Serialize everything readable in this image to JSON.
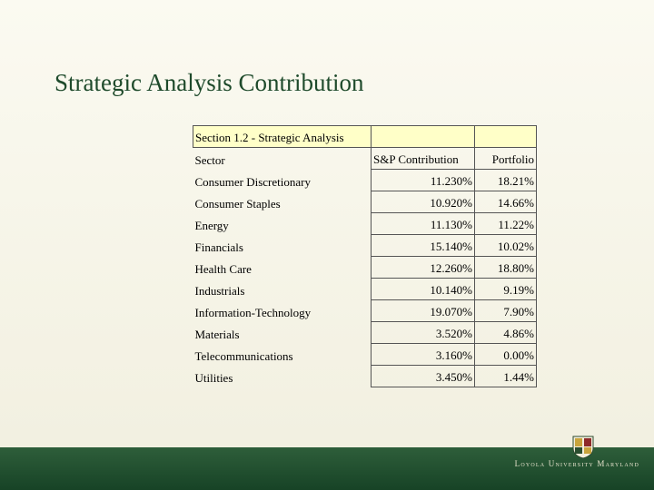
{
  "title": "Strategic Analysis Contribution",
  "table": {
    "caption": "Section 1.2 - Strategic Analysis",
    "columns": [
      "Sector",
      "S&P Contribution",
      "Portfolio"
    ],
    "rows": [
      [
        "Consumer Discretionary",
        "11.230%",
        "18.21%"
      ],
      [
        "Consumer Staples",
        "10.920%",
        "14.66%"
      ],
      [
        "Energy",
        "11.130%",
        "11.22%"
      ],
      [
        "Financials",
        "15.140%",
        "10.02%"
      ],
      [
        "Health Care",
        "12.260%",
        "18.80%"
      ],
      [
        "Industrials",
        "10.140%",
        "9.19%"
      ],
      [
        "Information-Technology",
        "19.070%",
        "7.90%"
      ],
      [
        "Materials",
        "3.520%",
        "4.86%"
      ],
      [
        "Telecommunications",
        "3.160%",
        "0.00%"
      ],
      [
        "Utilities",
        "3.450%",
        "1.44%"
      ]
    ]
  },
  "footer": {
    "logo_text": "Loyola University Maryland"
  }
}
